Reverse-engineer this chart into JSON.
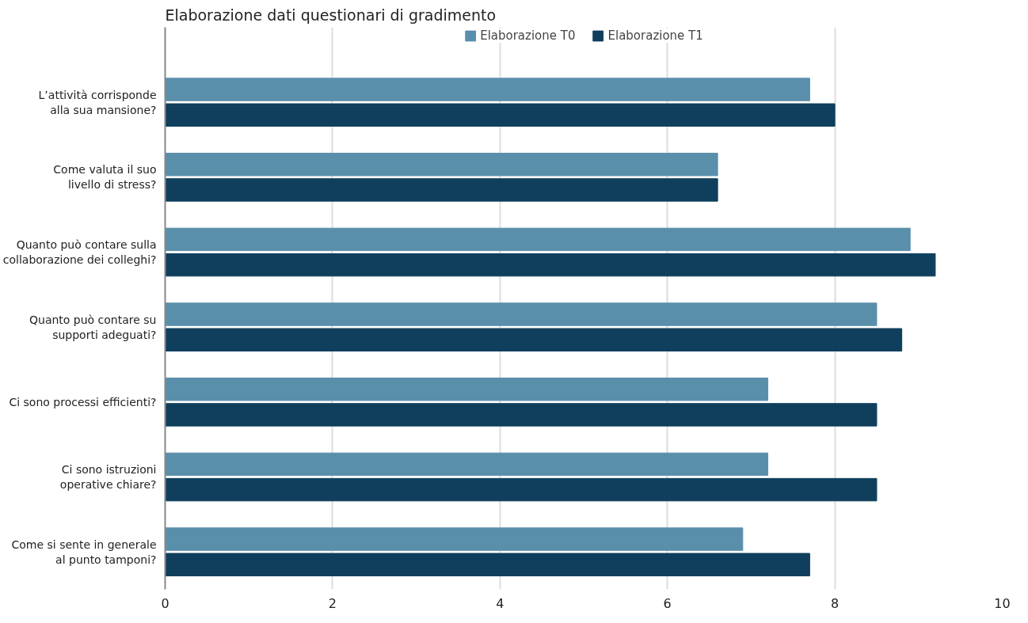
{
  "chart_data": {
    "type": "bar",
    "orientation": "horizontal",
    "title": "Elaborazione dati questionari di gradimento",
    "categories": [
      "L’attività corrisponde\nalla sua mansione?",
      "Come valuta il suo\nlivello di stress?",
      "Quanto può contare sulla\ncollaborazione dei colleghi?",
      "Quanto può contare su\nsupporti adeguati?",
      "Ci sono processi efficienti?",
      "Ci sono istruzioni\noperative chiare?",
      "Come si sente in generale\nal punto tamponi?"
    ],
    "series": [
      {
        "name": "Elaborazione T0",
        "color": "#5a8fab",
        "values": [
          7.7,
          6.6,
          8.9,
          8.5,
          7.2,
          7.2,
          6.9
        ]
      },
      {
        "name": "Elaborazione T1",
        "color": "#0f3f5c",
        "values": [
          8.0,
          6.6,
          9.2,
          8.8,
          8.5,
          8.5,
          7.7
        ]
      }
    ],
    "xlim": [
      0,
      10
    ],
    "xticks": [
      0,
      2,
      4,
      6,
      8,
      10
    ],
    "grid": "x",
    "legend": "top"
  }
}
